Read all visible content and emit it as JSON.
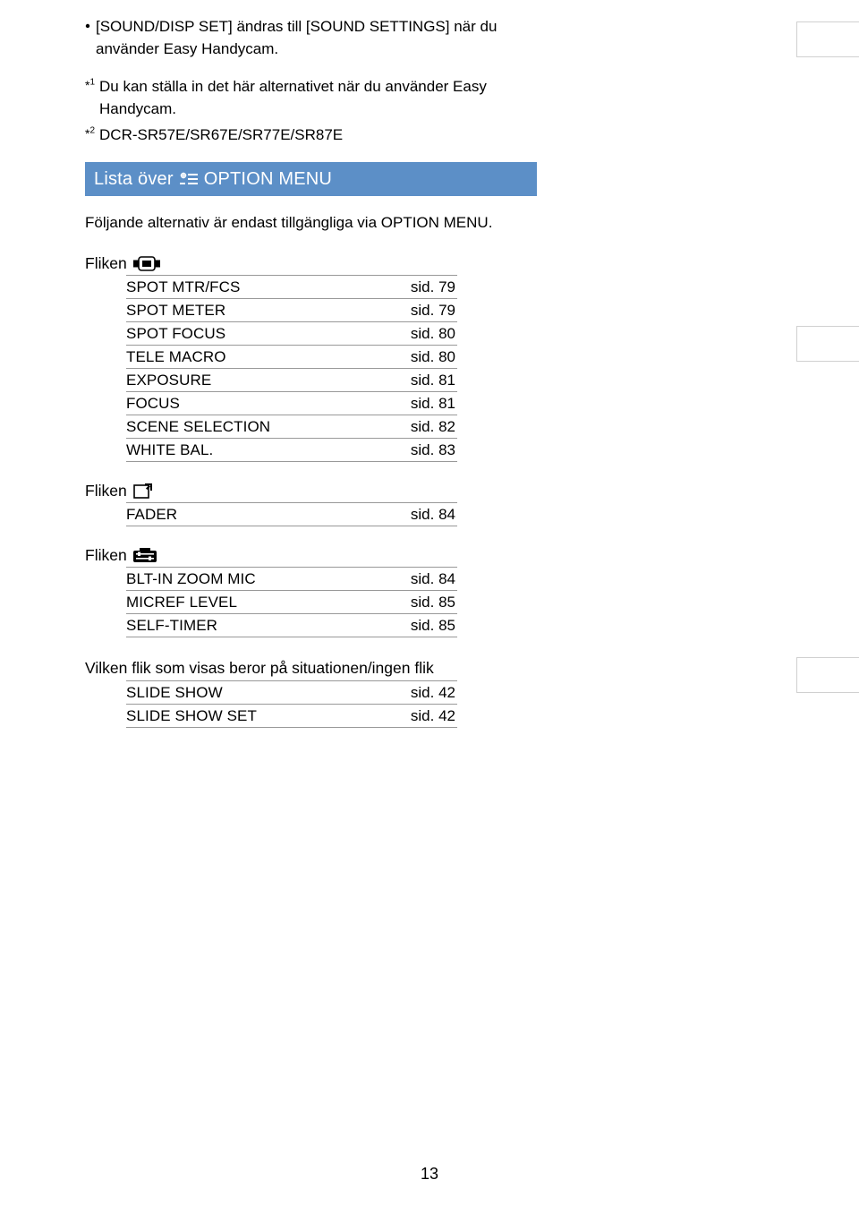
{
  "colors": {
    "text": "#000000",
    "background": "#ffffff",
    "headingBg": "#5c8fc7",
    "headingText": "#ffffff",
    "ruleGray": "#999999",
    "tabBorder": "#d0d0d0"
  },
  "bullet": {
    "text": "[SOUND/DISP SET] ändras till [SOUND SETTINGS] när du använder Easy Handycam."
  },
  "footnotes": [
    {
      "marker": "*1",
      "text": "Du kan ställa in det här alternativet när du använder Easy Handycam."
    },
    {
      "marker": "*2",
      "text": "DCR-SR57E/SR67E/SR77E/SR87E"
    }
  ],
  "heading": {
    "before": "Lista över",
    "after": "OPTION MENU"
  },
  "intro": "Följande alternativ är endast tillgängliga via OPTION MENU.",
  "tabs": [
    {
      "label": "Fliken",
      "icon": "manual-box",
      "rows": [
        {
          "name": "SPOT MTR/FCS",
          "page": "sid. 79"
        },
        {
          "name": "SPOT METER",
          "page": "sid. 79"
        },
        {
          "name": "SPOT FOCUS",
          "page": "sid. 80"
        },
        {
          "name": "TELE MACRO",
          "page": "sid. 80"
        },
        {
          "name": "EXPOSURE",
          "page": "sid. 81"
        },
        {
          "name": "FOCUS",
          "page": "sid. 81"
        },
        {
          "name": "SCENE SELECTION",
          "page": "sid. 82"
        },
        {
          "name": "WHITE BAL.",
          "page": "sid. 83"
        }
      ]
    },
    {
      "label": "Fliken",
      "icon": "scene-square",
      "rows": [
        {
          "name": "FADER",
          "page": "sid. 84"
        }
      ]
    },
    {
      "label": "Fliken",
      "icon": "settings-sliders",
      "rows": [
        {
          "name": "BLT-IN ZOOM MIC",
          "page": "sid. 84"
        },
        {
          "name": "MICREF LEVEL",
          "page": "sid. 85"
        },
        {
          "name": "SELF-TIMER",
          "page": "sid. 85"
        }
      ]
    }
  ],
  "noTabSection": {
    "label": "Vilken flik som visas beror på situationen/ingen flik",
    "rows": [
      {
        "name": "SLIDE SHOW",
        "page": "sid. 42"
      },
      {
        "name": "SLIDE SHOW SET",
        "page": "sid. 42"
      }
    ]
  },
  "pageNumber": "13"
}
